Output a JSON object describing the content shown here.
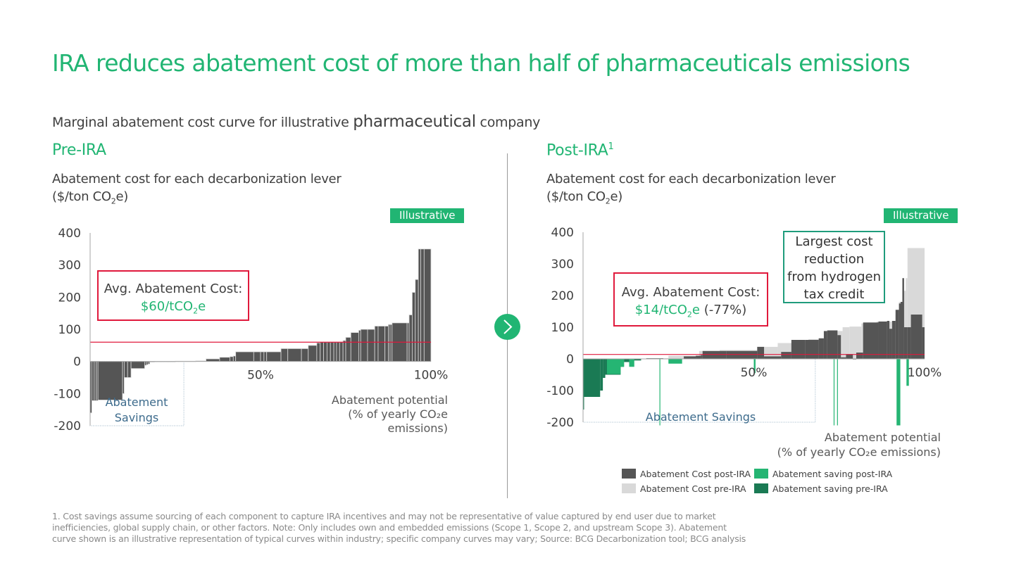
{
  "title": "IRA reduces abatement cost of more than half of pharmaceuticals emissions",
  "subtitle": {
    "part1": "Marginal abatement  cost curve for illustrative ",
    "part2": "pharmaceutical",
    "part3": " company"
  },
  "colors": {
    "brand_green": "#21b573",
    "cost_post_ira": "#555555",
    "cost_pre_ira": "#d9d9d9",
    "saving_post_ira": "#25b573",
    "saving_pre_ira": "#1a7a54",
    "avg_line": "#e0193c",
    "callout_border": "#1f9c7c",
    "savings_label": "#3d6b8c"
  },
  "pre": {
    "heading": "Pre-IRA",
    "axis_title_line1": "Abatement cost for each decarbonization lever",
    "axis_title_line2_a": "($/ton CO",
    "axis_title_line2_sub": "2",
    "axis_title_line2_b": "e)",
    "badge": "Illustrative",
    "avg_label": "Avg. Abatement Cost:",
    "avg_value_a": "$60/tCO",
    "avg_value_sub": "2",
    "avg_value_b": "e",
    "savings_label_1": "Abatement",
    "savings_label_2": "Savings",
    "xlabel_1": "Abatement potential",
    "xlabel_2": "(% of yearly CO₂e",
    "xlabel_3": "emissions)"
  },
  "post": {
    "heading": "Post-IRA",
    "heading_sup": "1",
    "axis_title_line1": "Abatement cost for each decarbonization lever",
    "axis_title_line2_a": "($/ton CO",
    "axis_title_line2_sub": "2",
    "axis_title_line2_b": "e)",
    "badge": "Illustrative",
    "avg_label": "Avg. Abatement Cost:",
    "avg_value_a": "$14/tCO",
    "avg_value_sub": "2",
    "avg_value_b": "e",
    "avg_change": " (-77%)",
    "callout": [
      "Largest cost",
      "reduction",
      "from hydrogen",
      "tax credit"
    ],
    "savings_label": "Abatement Savings",
    "xlabel_1": "Abatement potential",
    "xlabel_2": "(% of yearly CO₂e emissions)"
  },
  "legend": [
    {
      "label": "Abatement Cost post-IRA",
      "color_key": "cost_post_ira"
    },
    {
      "label": "Abatement saving post-IRA",
      "color_key": "saving_post_ira"
    },
    {
      "label": "Abatement Cost pre-IRA",
      "color_key": "cost_pre_ira"
    },
    {
      "label": "Abatement saving pre-IRA",
      "color_key": "saving_pre_ira"
    }
  ],
  "footnote": [
    "1. Cost savings assume sourcing of each component  to capture  IRA incentives and may not be representative of value captured  by end user due to market",
    "inefficiencies, global supply chain, or other  factors. Note: Only includes own and embedded  emissions (Scope 1, Scope 2, and upstream Scope 3). Abatement",
    "curve shown is an illustrative representation of typical curves within industry; specific company  curves may vary; Source: BCG Decarbonization  tool; BCG analysis"
  ],
  "chart_data": [
    {
      "type": "bar",
      "title": "Pre-IRA",
      "ylabel": "Abatement cost for each decarbonization lever ($/ton CO2e)",
      "xlabel": "Abatement potential (% of yearly CO2e emissions)",
      "ylim": [
        -200,
        400
      ],
      "yticks": [
        "400",
        "300",
        "200",
        "100",
        "0",
        "-100",
        "-200"
      ],
      "ytick_values": [
        400,
        300,
        200,
        100,
        0,
        -100,
        -200
      ],
      "xticks": [
        "50%",
        "100%"
      ],
      "xtick_values": [
        50,
        100
      ],
      "average_line": 60,
      "bar_format": "[x_start %, x_end %, cost $/tCO2e]",
      "bars": [
        [
          0,
          0.5,
          -160
        ],
        [
          0.5,
          1.2,
          -122
        ],
        [
          1.2,
          1.8,
          -122
        ],
        [
          1.8,
          2.3,
          -122
        ],
        [
          2.3,
          9.5,
          -120
        ],
        [
          9.5,
          10,
          -100
        ],
        [
          10,
          11,
          -50
        ],
        [
          11,
          12,
          -50
        ],
        [
          12,
          16,
          -22
        ],
        [
          16,
          16.5,
          -12
        ],
        [
          16.5,
          17,
          -10
        ],
        [
          17,
          17.5,
          -8
        ],
        [
          17.5,
          19,
          -2
        ],
        [
          19,
          25,
          -1
        ],
        [
          25,
          31,
          1
        ],
        [
          31,
          34,
          2
        ],
        [
          34,
          38,
          8
        ],
        [
          38,
          41,
          13
        ],
        [
          41,
          42,
          15
        ],
        [
          42,
          42.7,
          17
        ],
        [
          42.7,
          48,
          30
        ],
        [
          48,
          50,
          30
        ],
        [
          50,
          51,
          30
        ],
        [
          51,
          51.8,
          30
        ],
        [
          51.8,
          56,
          30
        ],
        [
          56,
          58,
          40
        ],
        [
          58,
          62,
          40
        ],
        [
          62,
          64,
          40
        ],
        [
          64,
          66.5,
          50
        ],
        [
          66.5,
          67.5,
          58
        ],
        [
          67.5,
          68.5,
          60
        ],
        [
          68.5,
          69.5,
          60
        ],
        [
          69.5,
          70.5,
          60
        ],
        [
          70.5,
          71.5,
          60
        ],
        [
          71.5,
          72.3,
          60
        ],
        [
          72.3,
          73.2,
          60
        ],
        [
          73.2,
          74.2,
          60
        ],
        [
          74.2,
          75,
          65
        ],
        [
          75,
          76.5,
          75
        ],
        [
          76.5,
          78.8,
          90
        ],
        [
          78.8,
          79.4,
          97
        ],
        [
          79.4,
          81.4,
          100
        ],
        [
          81.4,
          83.5,
          100
        ],
        [
          83.5,
          84.5,
          110
        ],
        [
          84.5,
          86.5,
          110
        ],
        [
          86.5,
          87.5,
          110
        ],
        [
          87.5,
          88,
          115
        ],
        [
          88,
          88.6,
          115
        ],
        [
          88.6,
          93,
          120
        ],
        [
          93,
          93.6,
          120
        ],
        [
          93.6,
          94.5,
          145
        ],
        [
          94.5,
          95.4,
          215
        ],
        [
          95.4,
          96.3,
          255
        ],
        [
          96.3,
          97,
          350
        ],
        [
          97,
          98,
          350
        ],
        [
          98,
          100,
          350
        ]
      ]
    },
    {
      "type": "bar",
      "title": "Post-IRA",
      "ylabel": "Abatement cost for each decarbonization lever ($/ton CO2e)",
      "xlabel": "Abatement potential (% of yearly CO2e emissions)",
      "ylim": [
        -200,
        400
      ],
      "yticks": [
        "400",
        "300",
        "200",
        "100",
        "0",
        "-100",
        "-200"
      ],
      "ytick_values": [
        400,
        300,
        200,
        100,
        0,
        -100,
        -200
      ],
      "xticks": [
        "50%",
        "100%"
      ],
      "xtick_values": [
        50,
        100
      ],
      "average_line": 14,
      "legend_position": "bottom-right",
      "bar_format": "[x_start %, x_end %, cost $/tCO2e]",
      "series": [
        {
          "name": "Abatement Cost pre-IRA",
          "color_key": "cost_pre_ira",
          "bars": [
            [
              17.5,
              22.5,
              1
            ],
            [
              22.5,
              25,
              2
            ],
            [
              25,
              29,
              10
            ],
            [
              29,
              34,
              10
            ],
            [
              34,
              40,
              25
            ],
            [
              40,
              44,
              28
            ],
            [
              44,
              51,
              28
            ],
            [
              51,
              57,
              38
            ],
            [
              57,
              62,
              50
            ],
            [
              62,
              66,
              58
            ],
            [
              66,
              72,
              62
            ],
            [
              72,
              73.5,
              64
            ],
            [
              73.5,
              76,
              88
            ],
            [
              76,
              78,
              100
            ],
            [
              78,
              81.5,
              102
            ],
            [
              81.5,
              86,
              112
            ],
            [
              86,
              90.5,
              118
            ],
            [
              90.5,
              91.5,
              120
            ],
            [
              91.5,
              92.5,
              140
            ],
            [
              92.5,
              93.5,
              180
            ],
            [
              93.5,
              94.5,
              215
            ],
            [
              94.5,
              95,
              255
            ],
            [
              95,
              100,
              350
            ]
          ]
        },
        {
          "name": "Abatement Cost post-IRA",
          "color_key": "cost_post_ira",
          "bars": [
            [
              18.5,
              22.5,
              2
            ],
            [
              22.5,
              23.5,
              2
            ],
            [
              29.5,
              33,
              8
            ],
            [
              33,
              34.5,
              10
            ],
            [
              34.5,
              35,
              12
            ],
            [
              35,
              42,
              25
            ],
            [
              42,
              51,
              25
            ],
            [
              51,
              53,
              38
            ],
            [
              53,
              58,
              8
            ],
            [
              58,
              61,
              22
            ],
            [
              61,
              65,
              60
            ],
            [
              65,
              69,
              60
            ],
            [
              69,
              70.5,
              65
            ],
            [
              70.5,
              71.5,
              88
            ],
            [
              71.5,
              74.5,
              90
            ],
            [
              74.5,
              75.5,
              75
            ],
            [
              75.5,
              76.5,
              5
            ],
            [
              76.5,
              77,
              5
            ],
            [
              77,
              79,
              15
            ],
            [
              79,
              80,
              0
            ],
            [
              80,
              82,
              20
            ],
            [
              82,
              86.5,
              115
            ],
            [
              86.5,
              89,
              118
            ],
            [
              89,
              89.7,
              120
            ],
            [
              89.7,
              90.5,
              95
            ],
            [
              90.5,
              91.5,
              120
            ],
            [
              91.5,
              92.5,
              155
            ],
            [
              92.5,
              93,
              175
            ],
            [
              93,
              93.5,
              180
            ],
            [
              93.5,
              94,
              255
            ],
            [
              94,
              95,
              100
            ],
            [
              95,
              96,
              100
            ],
            [
              96,
              99.3,
              140
            ],
            [
              99.3,
              100,
              100
            ]
          ]
        },
        {
          "name": "Abatement saving pre-IRA",
          "color_key": "saving_pre_ira",
          "bars": [
            [
              0,
              0.3,
              -160
            ],
            [
              0.3,
              5,
              -120
            ],
            [
              5,
              5.8,
              -100
            ],
            [
              5.8,
              6.5,
              -60
            ],
            [
              6.5,
              11,
              -50
            ],
            [
              11,
              12,
              -25
            ],
            [
              12,
              14,
              -10
            ],
            [
              14,
              17,
              -5
            ]
          ]
        },
        {
          "name": "Abatement saving post-IRA",
          "color_key": "saving_post_ira",
          "bars": [
            [
              7,
              11,
              -48
            ],
            [
              11,
              12,
              -25
            ],
            [
              13.5,
              15,
              -25
            ],
            [
              25,
              29,
              -15
            ],
            [
              50,
              50.5,
              -45
            ],
            [
              91.8,
              92.9,
              -210
            ],
            [
              94.7,
              95.4,
              -85
            ]
          ]
        },
        {
          "name": "Abatement saving post-IRA (thin lines)",
          "color_key": "saving_post_ira",
          "thin_lines_x_percent": [
            22.5,
            73.5,
            74.5
          ],
          "thin_lines_value": -210
        }
      ]
    }
  ]
}
